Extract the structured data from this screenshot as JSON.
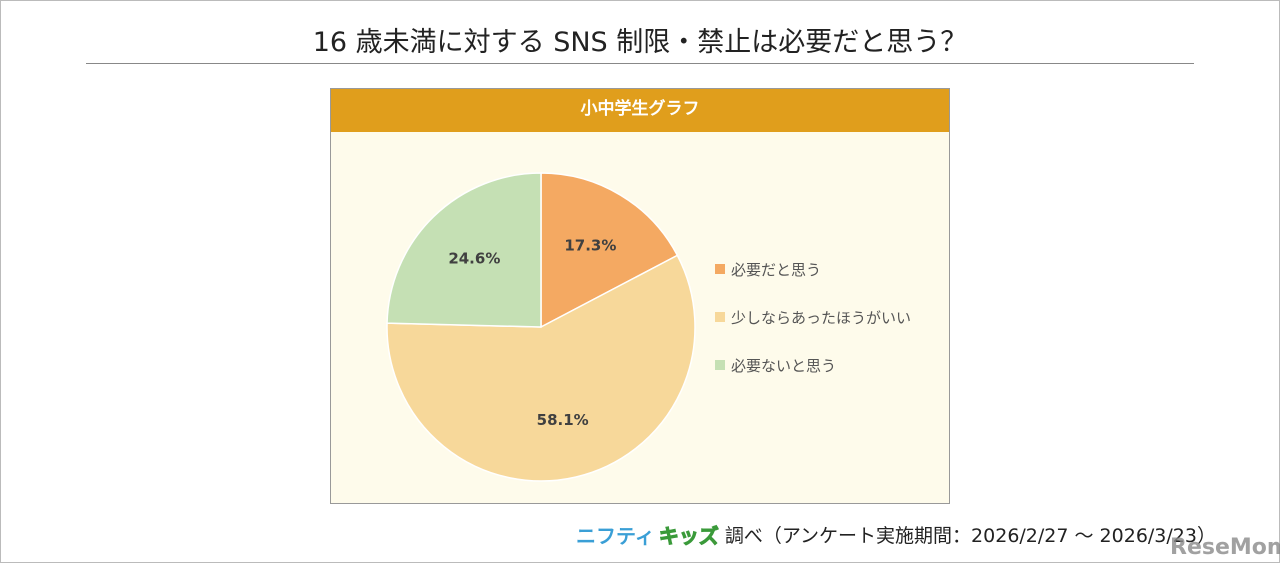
{
  "title": "16 歳未満に対する SNS 制限・禁止は必要だと思う？",
  "panel_title": "小中学生グラフ",
  "colors": {
    "header": "#E09E1C",
    "background": "#FEFBEB"
  },
  "chart_data": {
    "type": "pie",
    "title": "小中学生グラフ",
    "start": "top",
    "direction": "clockwise",
    "legend_position": "right",
    "slices": [
      {
        "label": "必要だと思う",
        "value": 17.3,
        "display": "17.3%",
        "color": "#F4A962"
      },
      {
        "label": "少しならあったほうがいい",
        "value": 58.1,
        "display": "58.1%",
        "color": "#F7D89A"
      },
      {
        "label": "必要ないと思う",
        "value": 24.6,
        "display": "24.6%",
        "color": "#C5E0B4"
      }
    ]
  },
  "source": {
    "logo_part1": "ニフティ",
    "logo_part2": "キッズ",
    "text": "調べ（アンケート実施期間：2026/2/27 ～ 2026/3/23）"
  },
  "watermark": "ReseMom"
}
